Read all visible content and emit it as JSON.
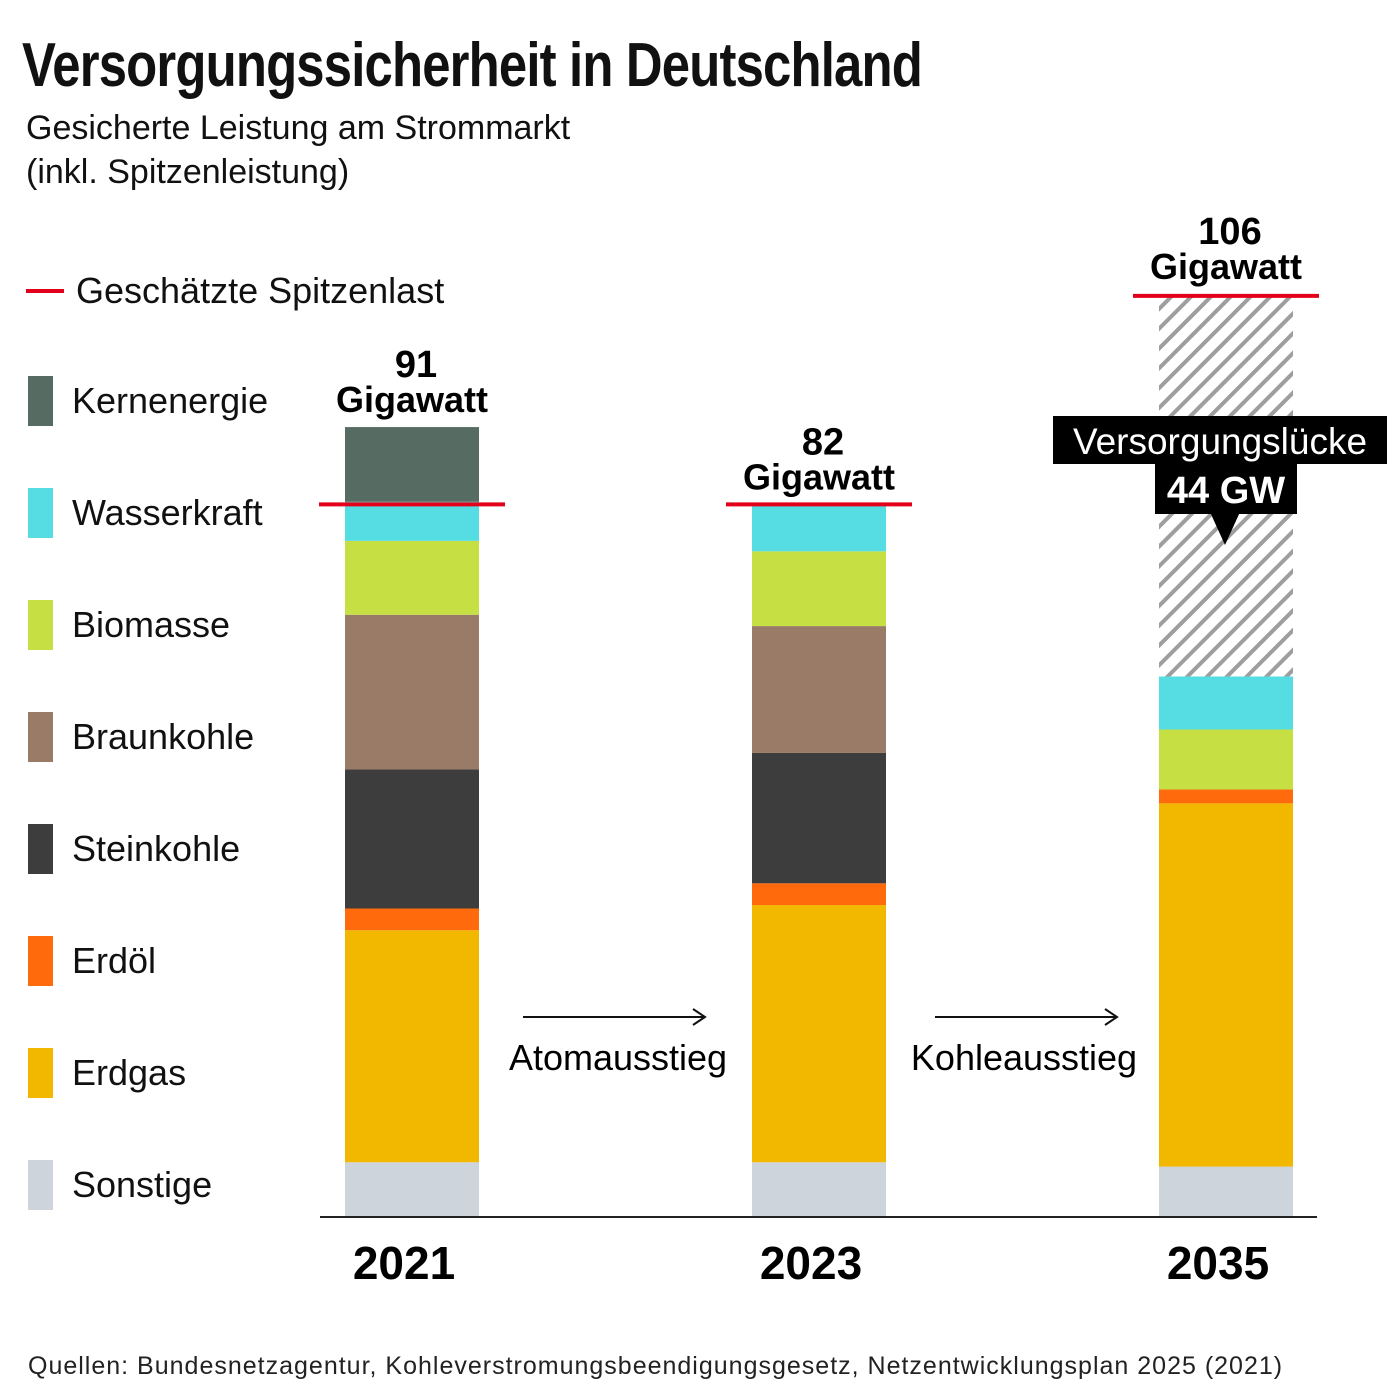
{
  "title": "Versorgungssicherheit in Deutschland",
  "subtitle_line1": "Gesicherte Leistung am Strommarkt",
  "subtitle_line2": "(inkl. Spitzenleistung)",
  "peak_legend_label": "Geschätzte Spitzenlast",
  "source": "Quellen: Bundesnetzagentur, Kohleverstromungsbeendigungsgesetz, Netzentwicklungsplan 2025 (2021)",
  "transitions": [
    "Atomausstieg",
    "Kohleausstieg"
  ],
  "gap_label": "Versorgungslücke",
  "gap_value_label": "44 GW",
  "chart_data": {
    "type": "bar",
    "stacked": true,
    "unit": "Gigawatt",
    "categories": [
      "2021",
      "2023",
      "2035"
    ],
    "series": [
      {
        "name": "Sonstige",
        "color": "#cdd4db",
        "values": [
          6.3,
          6.3,
          5.8
        ]
      },
      {
        "name": "Erdgas",
        "color": "#f2b800",
        "values": [
          26.7,
          29.6,
          41.8
        ]
      },
      {
        "name": "Erdöl",
        "color": "#ff6a0d",
        "values": [
          2.5,
          2.5,
          1.6
        ]
      },
      {
        "name": "Steinkohle",
        "color": "#3d3d3d",
        "values": [
          16.0,
          15.0,
          0
        ]
      },
      {
        "name": "Braunkohle",
        "color": "#9a7b67",
        "values": [
          17.8,
          14.6,
          0
        ]
      },
      {
        "name": "Biomasse",
        "color": "#c6e043",
        "values": [
          8.5,
          8.6,
          6.9
        ]
      },
      {
        "name": "Wasserkraft",
        "color": "#56dde4",
        "values": [
          4.5,
          5.3,
          6.1
        ]
      },
      {
        "name": "Kernenergie",
        "color": "#566b61",
        "values": [
          8.6,
          0,
          0
        ]
      }
    ],
    "gap": {
      "category": "2035",
      "value": 44,
      "pattern": "hatched grey"
    },
    "peak_load": {
      "name": "Geschätzte Spitzenlast",
      "color": "#e2001a",
      "values": [
        82,
        82,
        106
      ]
    },
    "total_labels": [
      {
        "category": "2021",
        "value": "91",
        "unit": "Gigawatt"
      },
      {
        "category": "2023",
        "value": "82",
        "unit": "Gigawatt"
      },
      {
        "category": "2035",
        "value": "106",
        "unit": "Gigawatt"
      }
    ],
    "legend_order": [
      "Kernenergie",
      "Wasserkraft",
      "Biomasse",
      "Braunkohle",
      "Steinkohle",
      "Erdöl",
      "Erdgas",
      "Sonstige"
    ],
    "legend_position": "left",
    "grid": false
  }
}
